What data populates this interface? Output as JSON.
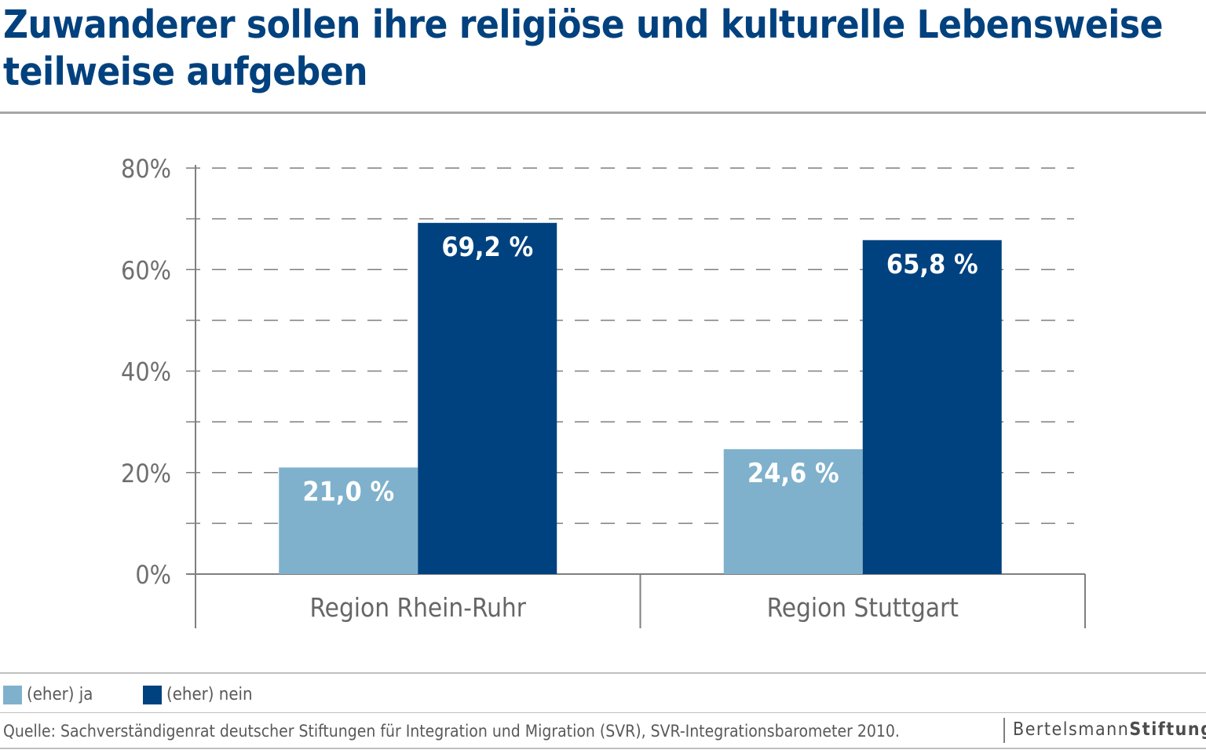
{
  "title": "Zuwanderer sollen ihre religiöse und kulturelle Lebensweise teilweise aufgeben",
  "legend": [
    {
      "label": "(eher) ja",
      "color": "#7fb1cc"
    },
    {
      "label": "(eher) nein",
      "color": "#00427f"
    }
  ],
  "source": "Quelle: Sachverständigenrat deutscher Stiftungen für Integration und Migration (SVR), SVR-Integrationsbarometer 2010.",
  "brand": {
    "part1": "Bertelsmann",
    "part2": "Stiftung"
  },
  "chart_data": {
    "type": "bar",
    "categories": [
      "Region Rhein-Ruhr",
      "Region Stuttgart"
    ],
    "series": [
      {
        "name": "(eher) ja",
        "values": [
          21.0,
          24.6
        ],
        "labels": [
          "21,0 %",
          "24,6 %"
        ],
        "color": "#7fb1cc"
      },
      {
        "name": "(eher) nein",
        "values": [
          69.2,
          65.8
        ],
        "labels": [
          "69,2 %",
          "65,8 %"
        ],
        "color": "#00427f"
      }
    ],
    "ylim": [
      0,
      80
    ],
    "yticks": [
      0,
      20,
      40,
      60,
      80
    ],
    "ytick_labels": [
      "0%",
      "20%",
      "40%",
      "60%",
      "80%"
    ],
    "minor_gridlines": [
      10,
      30,
      50,
      70
    ],
    "grid": "dashed",
    "xlabel": "",
    "ylabel": ""
  }
}
